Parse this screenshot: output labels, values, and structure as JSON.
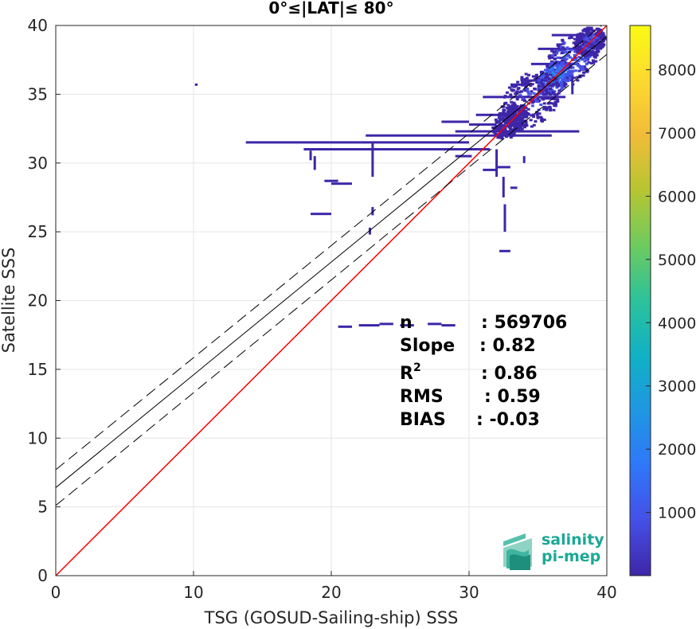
{
  "chart_data": {
    "type": "heatmap",
    "title": "0°≤|LAT|≤ 80°",
    "xlabel": "TSG (GOSUD-Sailing-ship) SSS",
    "ylabel": "Satellite SSS",
    "xlim": [
      0,
      40
    ],
    "ylim": [
      0,
      40
    ],
    "x_ticks": [
      0,
      10,
      20,
      30,
      40
    ],
    "y_ticks": [
      0,
      5,
      10,
      15,
      20,
      25,
      30,
      35,
      40
    ],
    "grid": true,
    "colorbar": {
      "range": [
        0,
        8700
      ],
      "ticks": [
        1000,
        2000,
        3000,
        4000,
        5000,
        6000,
        7000,
        8000
      ],
      "colormap": "parula",
      "colors": [
        "#3e26a8",
        "#4550e6",
        "#2f77fa",
        "#1f97e2",
        "#10b1c4",
        "#2cc29b",
        "#6ecb5f",
        "#b6c531",
        "#f1bc39",
        "#fdd92f",
        "#f9fb14"
      ]
    },
    "lines": [
      {
        "name": "identity",
        "color": "#ff0000",
        "x": [
          0,
          40
        ],
        "y": [
          0,
          40
        ]
      },
      {
        "name": "regression",
        "color": "#000000",
        "x": [
          0,
          40
        ],
        "y": [
          6.4,
          39.2
        ]
      },
      {
        "name": "regression-upper",
        "color": "#000000",
        "dash": true,
        "x": [
          0,
          40
        ],
        "y": [
          7.7,
          40.3
        ]
      },
      {
        "name": "regression-lower",
        "color": "#000000",
        "dash": true,
        "x": [
          0,
          40
        ],
        "y": [
          5.1,
          37.9
        ]
      }
    ],
    "stats": [
      {
        "label": "n",
        "value": ": 569706"
      },
      {
        "label": "Slope",
        "value": ": 0.82"
      },
      {
        "label": "R",
        "sup": "2",
        "value": ": 0.86"
      },
      {
        "label": "RMS",
        "value": ": 0.59"
      },
      {
        "label": "BIAS",
        "value": ": -0.03"
      }
    ],
    "density": [
      {
        "x": 37.5,
        "y": 37.5,
        "rx": 2.2,
        "ry": 1.6,
        "count": 1500
      },
      {
        "x": 36.2,
        "y": 36.2,
        "rx": 1.5,
        "ry": 1.0,
        "count": 3500
      },
      {
        "x": 34.5,
        "y": 34.6,
        "rx": 2.4,
        "ry": 1.8,
        "count": 800
      },
      {
        "x": 38.8,
        "y": 38.8,
        "rx": 1.2,
        "ry": 1.0,
        "count": 900
      },
      {
        "x": 33.0,
        "y": 33.0,
        "rx": 1.5,
        "ry": 1.0,
        "count": 500
      }
    ],
    "sparse_segments": [
      {
        "x0": 29.0,
        "x1": 38.0,
        "y": 32.3
      },
      {
        "x0": 22.5,
        "x1": 36.0,
        "y": 32.0
      },
      {
        "x0": 13.8,
        "x1": 30.0,
        "y": 31.5
      },
      {
        "x0": 18.0,
        "x1": 31.5,
        "y": 31.0
      },
      {
        "x0": 30.5,
        "x1": 34.0,
        "y": 33.5
      },
      {
        "x0": 31.0,
        "x1": 37.0,
        "y": 34.8
      },
      {
        "x0": 34.5,
        "x1": 38.0,
        "y": 37.2
      },
      {
        "x0": 29.0,
        "x1": 30.2,
        "y": 30.5
      },
      {
        "x0": 31.0,
        "x1": 32.0,
        "y": 29.5
      },
      {
        "x0": 32.0,
        "x1": 33.0,
        "y": 29.7
      },
      {
        "x0": 20.0,
        "x1": 21.5,
        "y": 28.5
      },
      {
        "x0": 19.5,
        "x1": 20.5,
        "y": 28.7
      },
      {
        "x0": 18.5,
        "x1": 20.0,
        "y": 26.3
      },
      {
        "x0": 33.0,
        "x1": 33.5,
        "y": 28.2
      },
      {
        "x0": 32.2,
        "x1": 33.0,
        "y": 23.6
      },
      {
        "x0": 20.5,
        "x1": 21.5,
        "y": 18.1
      },
      {
        "x0": 22.0,
        "x1": 23.5,
        "y": 18.2
      },
      {
        "x0": 23.5,
        "x1": 24.5,
        "y": 18.3
      },
      {
        "x0": 25.0,
        "x1": 26.0,
        "y": 18.2
      },
      {
        "x0": 27.0,
        "x1": 28.0,
        "y": 18.3
      },
      {
        "x0": 28.0,
        "x1": 29.0,
        "y": 18.2
      },
      {
        "x0": 33.0,
        "x1": 34.5,
        "y": 35.7
      },
      {
        "x0": 34.0,
        "x1": 36.5,
        "y": 36.0
      },
      {
        "x0": 35.0,
        "x1": 38.0,
        "y": 38.3
      },
      {
        "x0": 36.0,
        "x1": 39.5,
        "y": 39.3
      },
      {
        "x0": 10.1,
        "x1": 10.3,
        "y": 35.7
      },
      {
        "x0": 28.0,
        "x1": 30.0,
        "y": 33.0
      },
      {
        "x0": 30.0,
        "x1": 32.0,
        "y": 32.8
      }
    ],
    "sparse_columns": [
      {
        "x": 18.5,
        "y0": 30.2,
        "y1": 30.9
      },
      {
        "x": 18.8,
        "y0": 29.5,
        "y1": 30.5
      },
      {
        "x": 23.0,
        "y0": 29.0,
        "y1": 31.5
      },
      {
        "x": 32.0,
        "y0": 29.0,
        "y1": 31.0
      },
      {
        "x": 32.6,
        "y0": 25.0,
        "y1": 27.0
      },
      {
        "x": 32.5,
        "y0": 27.5,
        "y1": 29.0
      },
      {
        "x": 23.0,
        "y0": 26.2,
        "y1": 26.8
      },
      {
        "x": 22.8,
        "y0": 24.8,
        "y1": 25.3
      },
      {
        "x": 34.0,
        "y0": 30.0,
        "y1": 30.5
      },
      {
        "x": 37.5,
        "y0": 35.0,
        "y1": 36.5
      }
    ]
  },
  "logo": {
    "line1": "salinity",
    "line2": "pi-mep",
    "color": "#1aa896"
  }
}
